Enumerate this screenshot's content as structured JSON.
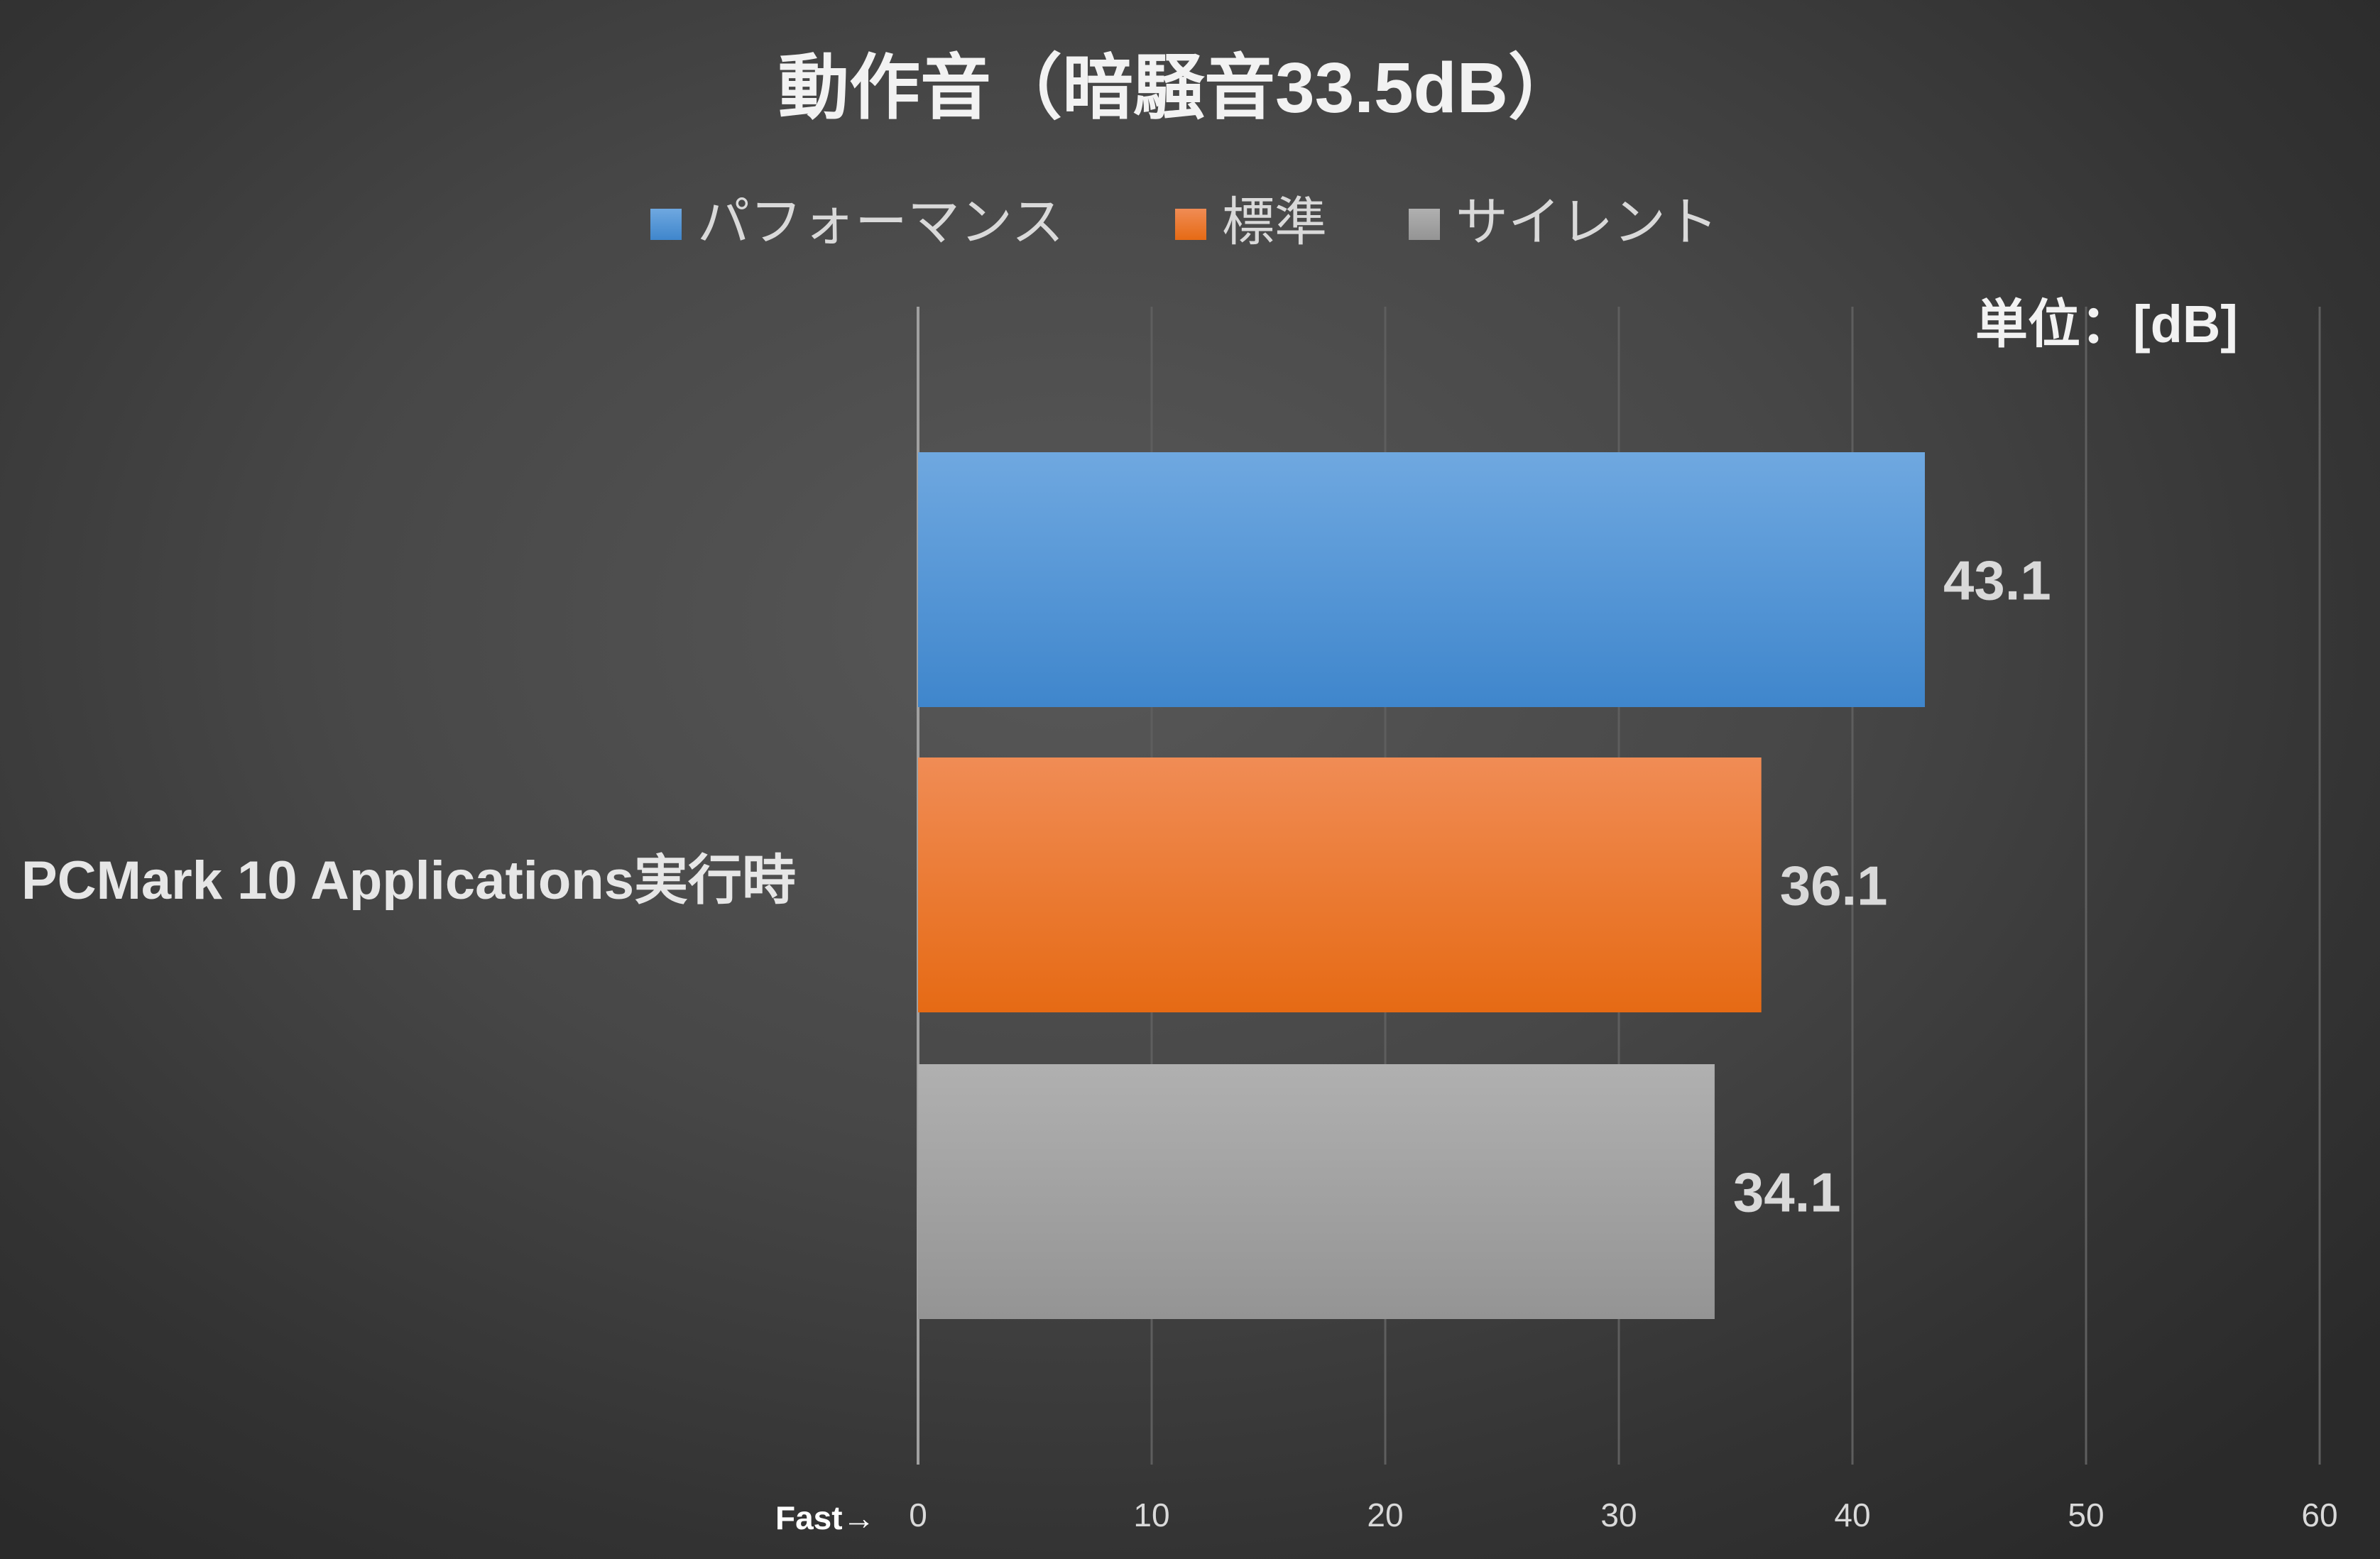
{
  "chart_data": {
    "type": "bar",
    "orientation": "horizontal",
    "title": "動作音（暗騒音33.5dB）",
    "unit_label": "単位：[dB]",
    "categories": [
      "PCMark 10 Applications実行時"
    ],
    "series": [
      {
        "name": "パフォーマンス",
        "values": [
          43.1
        ],
        "color": "#4a8fd6"
      },
      {
        "name": "標準",
        "values": [
          36.1
        ],
        "color": "#ef7a2a"
      },
      {
        "name": "サイレント",
        "values": [
          34.1
        ],
        "color": "#a5a5a5"
      }
    ],
    "xlim": [
      0,
      60
    ],
    "xticks": [
      "0",
      "10",
      "20",
      "30",
      "40",
      "50",
      "60"
    ],
    "xtick_values": [
      0,
      10,
      20,
      30,
      40,
      50,
      60
    ],
    "grid": true,
    "legend_position": "top",
    "axis_note": "Fast→"
  }
}
